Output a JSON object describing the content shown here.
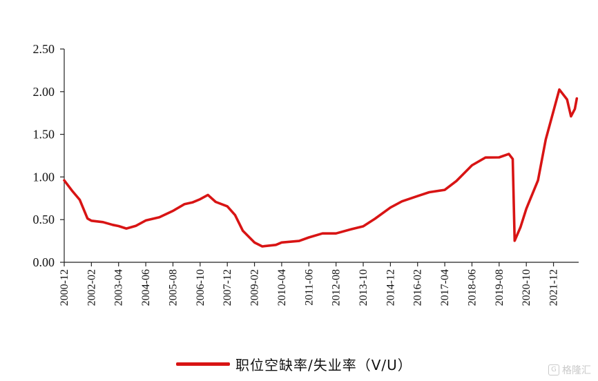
{
  "chart_data": {
    "type": "line",
    "y_ticks": [
      "0.00",
      "0.50",
      "1.00",
      "1.50",
      "2.00",
      "2.50"
    ],
    "ylim": [
      0,
      2.5
    ],
    "x_ticks": [
      "2000-12",
      "2002-02",
      "2003-04",
      "2004-06",
      "2005-08",
      "2006-10",
      "2007-12",
      "2009-02",
      "2010-04",
      "2011-06",
      "2012-08",
      "2013-10",
      "2014-12",
      "2016-02",
      "2017-04",
      "2018-06",
      "2019-08",
      "2020-10",
      "2021-12"
    ],
    "grid": false,
    "legend_position": "bottom",
    "series": [
      {
        "name": "职位空缺率/失业率（V/U）",
        "color": "#d81414",
        "points": [
          [
            "2000-12",
            0.96
          ],
          [
            "2001-04",
            0.85
          ],
          [
            "2001-08",
            0.72
          ],
          [
            "2001-12",
            0.52
          ],
          [
            "2002-02",
            0.49
          ],
          [
            "2002-08",
            0.46
          ],
          [
            "2003-01",
            0.45
          ],
          [
            "2003-04",
            0.42
          ],
          [
            "2003-08",
            0.39
          ],
          [
            "2004-01",
            0.44
          ],
          [
            "2004-06",
            0.48
          ],
          [
            "2005-01",
            0.53
          ],
          [
            "2005-08",
            0.61
          ],
          [
            "2006-02",
            0.67
          ],
          [
            "2006-06",
            0.71
          ],
          [
            "2006-10",
            0.74
          ],
          [
            "2007-02",
            0.78
          ],
          [
            "2007-06",
            0.72
          ],
          [
            "2007-12",
            0.65
          ],
          [
            "2008-04",
            0.55
          ],
          [
            "2008-08",
            0.38
          ],
          [
            "2009-02",
            0.22
          ],
          [
            "2009-06",
            0.19
          ],
          [
            "2010-01",
            0.21
          ],
          [
            "2010-04",
            0.22
          ],
          [
            "2011-01",
            0.26
          ],
          [
            "2011-06",
            0.29
          ],
          [
            "2012-01",
            0.33
          ],
          [
            "2012-08",
            0.35
          ],
          [
            "2013-04",
            0.38
          ],
          [
            "2013-10",
            0.42
          ],
          [
            "2014-04",
            0.52
          ],
          [
            "2014-12",
            0.63
          ],
          [
            "2015-06",
            0.72
          ],
          [
            "2016-02",
            0.78
          ],
          [
            "2016-08",
            0.81
          ],
          [
            "2017-04",
            0.86
          ],
          [
            "2017-10",
            0.95
          ],
          [
            "2018-06",
            1.13
          ],
          [
            "2019-01",
            1.24
          ],
          [
            "2019-08",
            1.22
          ],
          [
            "2020-01",
            1.27
          ],
          [
            "2020-03",
            1.22
          ],
          [
            "2020-04",
            0.24
          ],
          [
            "2020-07",
            0.42
          ],
          [
            "2020-10",
            0.63
          ],
          [
            "2021-04",
            0.95
          ],
          [
            "2021-08",
            1.45
          ],
          [
            "2021-12",
            1.77
          ],
          [
            "2022-03",
            2.02
          ],
          [
            "2022-07",
            1.92
          ],
          [
            "2022-09",
            1.7
          ],
          [
            "2022-11",
            1.8
          ],
          [
            "2022-12",
            1.92
          ]
        ]
      }
    ]
  },
  "legend": {
    "label": "职位空缺率/失业率（V/U）"
  },
  "watermark": {
    "icon": "G",
    "text": "格隆汇"
  }
}
